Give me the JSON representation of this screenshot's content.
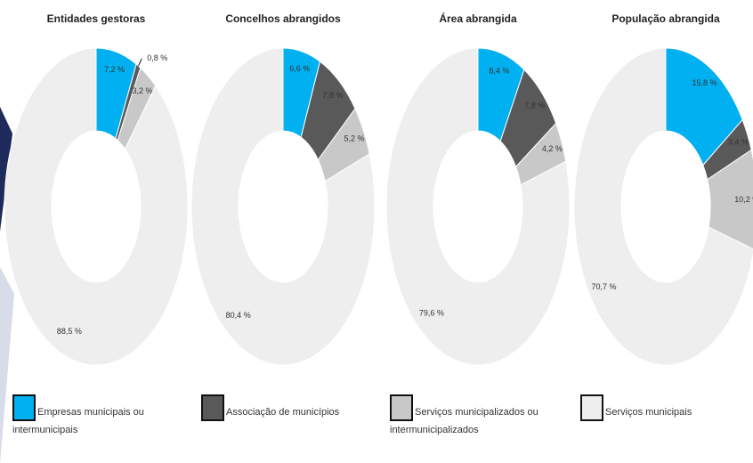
{
  "chart_data": {
    "type": "donut",
    "categories": [
      "Empresas municipais ou intermunicipais",
      "Associação de municípios",
      "Serviços municipalizados ou intermunicipalizados",
      "Serviços municipais"
    ],
    "colors": [
      "#00b0f0",
      "#595959",
      "#c8c8c8",
      "#eeeeee"
    ],
    "panels": [
      {
        "title": "Entidades gestoras",
        "values": [
          7.2,
          0.8,
          3.2,
          88.5
        ],
        "value_labels": [
          "7,2 %",
          "0,8 %",
          "3,2 %",
          "88,5 %"
        ]
      },
      {
        "title": "Concelhos abrangidos",
        "values": [
          6.6,
          7.8,
          5.2,
          80.4
        ],
        "value_labels": [
          "6,6 %",
          "7,8 %",
          "5,2 %",
          "80,4 %"
        ]
      },
      {
        "title": "Área abrangida",
        "values": [
          8.4,
          7.8,
          4.2,
          79.6
        ],
        "value_labels": [
          "8,4 %",
          "7,8 %",
          "4,2 %",
          "79,6 %"
        ]
      },
      {
        "title": "População abrangida",
        "values": [
          15.8,
          3.4,
          10.2,
          70.7
        ],
        "value_labels": [
          "15,8 %",
          "3,4 %",
          "10,2 %",
          "70,7 %"
        ]
      }
    ]
  }
}
